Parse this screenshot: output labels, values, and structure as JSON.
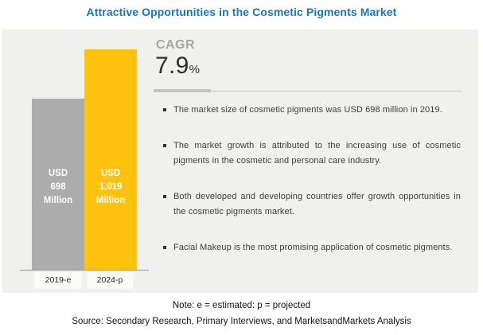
{
  "title": "Attractive Opportunities in the Cosmetic Pigments Market",
  "chart_data": {
    "type": "bar",
    "title": "Attractive Opportunities in the Cosmetic Pigments Market",
    "categories": [
      "2019-e",
      "2024-p"
    ],
    "values": [
      698,
      1019
    ],
    "unit": "USD Million",
    "bar_value_labels": [
      "USD\n698\nMillion",
      "USD\n1,019\nMillion"
    ],
    "bar_colors": [
      "#acacac",
      "#ffc20e"
    ],
    "ylim": [
      0,
      1100
    ],
    "grid": false,
    "legend": "none"
  },
  "cagr": {
    "label": "CAGR",
    "value": "7.9",
    "suffix": "%"
  },
  "bullets": [
    "The market size of cosmetic pigments was USD 698 million in 2019.",
    "The market growth is attributed to the increasing use of cosmetic pigments in the cosmetic and personal care industry.",
    "Both developed and developing countries offer growth opportunities in the cosmetic pigments market.",
    "Facial Makeup is the most promising application of cosmetic pigments."
  ],
  "footer": {
    "note": "Note: e = estimated: p = projected",
    "source": "Source: Secondary Research, Primary Interviews, and MarketsandMarkets Analysis"
  },
  "colors": {
    "title_blue": "#1876bc",
    "panel_bg": "#f0f0ee",
    "bar_gray": "#acacac",
    "bar_yellow": "#ffc20e"
  }
}
